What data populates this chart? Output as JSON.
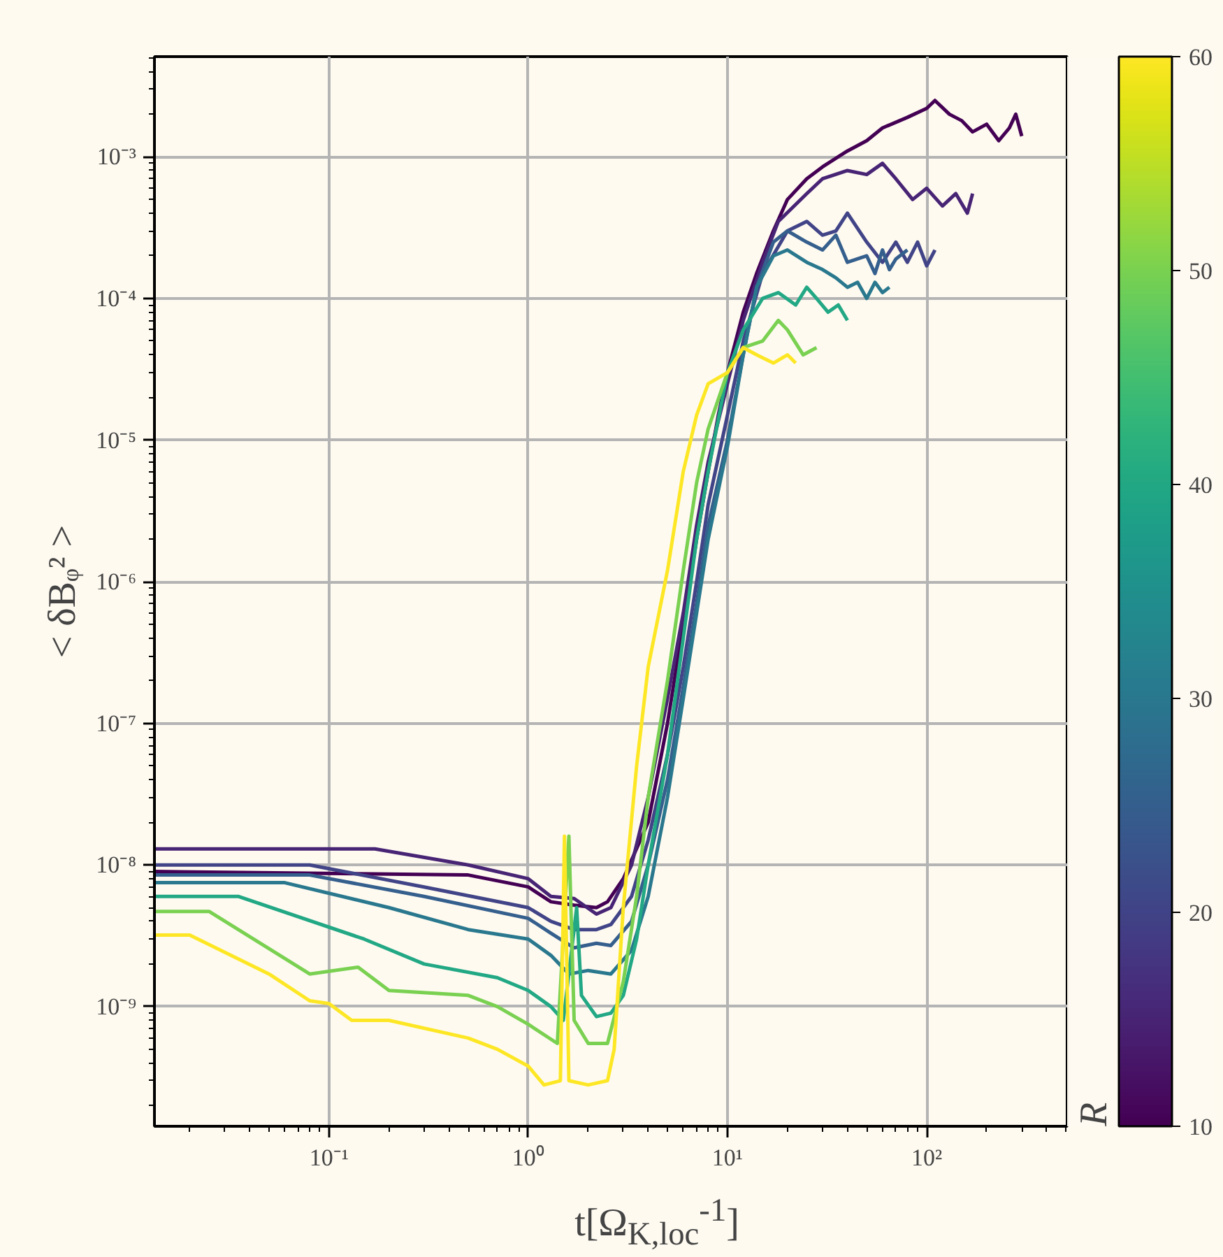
{
  "chart_data": {
    "type": "line",
    "xlabel": "t[Ω$_{K,loc}$$^{-1}$]",
    "ylabel": "< δBᵩ² >",
    "clabel": "R",
    "clim": [
      10,
      60
    ],
    "cticks": [
      10,
      20,
      30,
      40,
      50,
      60
    ],
    "log": "xy",
    "grid": true,
    "xlim": [
      0.0133,
      507
    ],
    "ylim": [
      1.43e-10,
      0.0051
    ],
    "xticks": [
      {
        "value": 0.1,
        "label": "10⁻¹"
      },
      {
        "value": 1,
        "label": "10⁰"
      },
      {
        "value": 10,
        "label": "10¹"
      },
      {
        "value": 100,
        "label": "10²"
      }
    ],
    "yticks": [
      {
        "value": 1e-09,
        "label": "10⁻⁹"
      },
      {
        "value": 1e-08,
        "label": "10⁻⁸"
      },
      {
        "value": 1e-07,
        "label": "10⁻⁷"
      },
      {
        "value": 1e-06,
        "label": "10⁻⁶"
      },
      {
        "value": 1e-05,
        "label": "10⁻⁵"
      },
      {
        "value": 0.0001,
        "label": "10⁻⁴"
      },
      {
        "value": 0.001,
        "label": "10⁻³"
      }
    ],
    "series": [
      {
        "color": "#440154",
        "x": [
          0.0133,
          0.5,
          1.0,
          1.3,
          1.7,
          2.2,
          2.5,
          3,
          4,
          5,
          6,
          7,
          8,
          9,
          10,
          12,
          14,
          17,
          20,
          25,
          30,
          40,
          50,
          60,
          80,
          100,
          110,
          130,
          150,
          170,
          200,
          230,
          260,
          280,
          300
        ],
        "values": [
          9e-09,
          8.5e-09,
          7e-09,
          5.5e-09,
          5.2e-09,
          5e-09,
          5.5e-09,
          8e-09,
          2e-08,
          1e-07,
          5e-07,
          2e-06,
          6e-06,
          1.5e-05,
          3e-05,
          8e-05,
          0.00015,
          0.0003,
          0.0005,
          0.0007,
          0.00085,
          0.0011,
          0.0013,
          0.0016,
          0.0019,
          0.0022,
          0.0025,
          0.002,
          0.0018,
          0.0015,
          0.0017,
          0.0013,
          0.0016,
          0.002,
          0.0014
        ]
      },
      {
        "color": "#482475",
        "x": [
          0.0133,
          0.17,
          0.5,
          1.0,
          1.3,
          1.7,
          2.2,
          2.6,
          3.3,
          4,
          5,
          6,
          7,
          8,
          10,
          12,
          15,
          18,
          25,
          30,
          40,
          50,
          60,
          70,
          85,
          100,
          120,
          140,
          160,
          170
        ],
        "values": [
          1.3e-08,
          1.3e-08,
          1e-08,
          8e-09,
          6e-09,
          5.8e-09,
          4.5e-09,
          5e-09,
          1e-08,
          3e-08,
          1.5e-07,
          6e-07,
          2.5e-06,
          7e-06,
          2.5e-05,
          7e-05,
          0.00018,
          0.00035,
          0.00055,
          0.0007,
          0.0008,
          0.00075,
          0.0009,
          0.0007,
          0.0005,
          0.0006,
          0.00045,
          0.00055,
          0.0004,
          0.00055
        ]
      },
      {
        "color": "#414487",
        "x": [
          0.0133,
          0.08,
          0.3,
          1.0,
          1.3,
          1.7,
          2.2,
          2.6,
          3.3,
          4,
          5,
          6,
          7,
          8,
          10,
          12,
          15,
          20,
          25,
          30,
          35,
          40,
          50,
          60,
          70,
          80,
          90,
          100,
          110
        ],
        "values": [
          1e-08,
          1e-08,
          7e-09,
          5e-09,
          4e-09,
          3.5e-09,
          3.5e-09,
          3.8e-09,
          6e-09,
          1.5e-08,
          6e-08,
          2.5e-07,
          1e-06,
          3.5e-06,
          1.5e-05,
          5e-05,
          0.00015,
          0.0003,
          0.00035,
          0.00028,
          0.0003,
          0.0004,
          0.00025,
          0.00018,
          0.00025,
          0.00018,
          0.00025,
          0.00017,
          0.00022
        ]
      },
      {
        "color": "#355f8d",
        "x": [
          0.0133,
          0.08,
          0.3,
          1.0,
          1.3,
          1.7,
          2.2,
          2.6,
          3.3,
          4,
          5,
          6,
          7,
          8,
          10,
          12,
          14,
          17,
          20,
          25,
          30,
          35,
          40,
          50,
          55,
          60,
          65,
          70,
          80
        ],
        "values": [
          8.5e-09,
          8.5e-09,
          6e-09,
          4.2e-09,
          3.3e-09,
          2.6e-09,
          2.8e-09,
          2.7e-09,
          4e-09,
          1e-08,
          4e-08,
          1.8e-07,
          7e-07,
          2.5e-06,
          1e-05,
          4e-05,
          0.00012,
          0.00025,
          0.0003,
          0.00025,
          0.00022,
          0.00028,
          0.00018,
          0.0002,
          0.00015,
          0.00022,
          0.00016,
          0.00019,
          0.00022
        ]
      },
      {
        "color": "#2a788e",
        "x": [
          0.0133,
          0.06,
          0.2,
          0.5,
          1.0,
          1.3,
          1.6,
          2.0,
          2.6,
          3.3,
          4,
          5,
          6,
          7,
          8,
          10,
          12,
          14,
          17,
          20,
          25,
          30,
          35,
          40,
          45,
          50,
          55,
          60,
          65
        ],
        "values": [
          7.5e-09,
          7.5e-09,
          5e-09,
          3.5e-09,
          3e-09,
          2.3e-09,
          1.7e-09,
          1.8e-09,
          1.7e-09,
          2.5e-09,
          6e-09,
          3e-08,
          1.5e-07,
          6e-07,
          2e-06,
          9e-06,
          4e-05,
          0.00012,
          0.0002,
          0.00022,
          0.00018,
          0.00016,
          0.00014,
          0.00012,
          0.00013,
          0.0001,
          0.00013,
          0.00011,
          0.00012
        ]
      },
      {
        "color": "#22a884",
        "x": [
          0.0133,
          0.035,
          0.15,
          0.3,
          0.7,
          1.0,
          1.3,
          1.5,
          1.75,
          1.85,
          2.2,
          2.6,
          3.0,
          3.5,
          4,
          5,
          6,
          7,
          8,
          10,
          12,
          15,
          18,
          22,
          25,
          28,
          32,
          36,
          40
        ],
        "values": [
          6e-09,
          6e-09,
          3e-09,
          2e-09,
          1.6e-09,
          1.3e-09,
          1e-09,
          8e-10,
          5e-09,
          1.2e-09,
          8.5e-10,
          9e-10,
          1.2e-09,
          3e-09,
          1e-08,
          6e-08,
          4e-07,
          2e-06,
          6e-06,
          3e-05,
          6e-05,
          0.0001,
          0.00011,
          9e-05,
          0.00012,
          0.0001,
          8e-05,
          9e-05,
          7e-05
        ]
      },
      {
        "color": "#7ad151",
        "x": [
          0.0133,
          0.025,
          0.08,
          0.14,
          0.2,
          0.5,
          0.7,
          1.0,
          1.4,
          1.6,
          1.7,
          2.0,
          2.5,
          3.0,
          3.5,
          4,
          5,
          6,
          7,
          8,
          10,
          12,
          15,
          18,
          20,
          24,
          28
        ],
        "values": [
          4.7e-09,
          4.7e-09,
          1.7e-09,
          1.9e-09,
          1.3e-09,
          1.2e-09,
          1e-09,
          7.5e-10,
          5.5e-10,
          1.6e-08,
          8e-10,
          5.5e-10,
          5.5e-10,
          1.5e-09,
          6e-09,
          3e-08,
          2e-07,
          1.2e-06,
          5e-06,
          1.2e-05,
          3e-05,
          4.5e-05,
          5e-05,
          7e-05,
          6e-05,
          4e-05,
          4.5e-05
        ]
      },
      {
        "color": "#fde725",
        "x": [
          0.0133,
          0.02,
          0.05,
          0.08,
          0.1,
          0.13,
          0.2,
          0.5,
          0.7,
          1.0,
          1.2,
          1.45,
          1.52,
          1.6,
          2.0,
          2.5,
          2.7,
          3.0,
          3.5,
          4,
          5,
          6,
          7,
          8,
          10,
          12,
          14,
          17,
          20,
          22
        ],
        "values": [
          3.2e-09,
          3.2e-09,
          1.7e-09,
          1.1e-09,
          1.05e-09,
          8e-10,
          8e-10,
          6e-10,
          5e-10,
          3.8e-10,
          2.8e-10,
          3e-10,
          1.6e-08,
          3e-10,
          2.8e-10,
          3e-10,
          5e-10,
          5e-09,
          5e-08,
          2.5e-07,
          1.2e-06,
          6e-06,
          1.5e-05,
          2.5e-05,
          3e-05,
          4.5e-05,
          4e-05,
          3.5e-05,
          4e-05,
          3.5e-05
        ]
      }
    ]
  }
}
